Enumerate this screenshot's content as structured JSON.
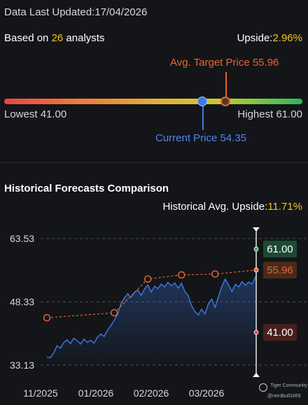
{
  "header": {
    "updated_prefix": "Data Last Updated:",
    "updated_date": "17/04/2026",
    "based_prefix": "Based on ",
    "analyst_count": "26",
    "based_suffix": " analysts",
    "upside_label": "Upside:",
    "upside_value": "2.96%"
  },
  "price_range": {
    "avg_target_label": "Avg. Target Price 55.96",
    "lowest_label": "Lowest 41.00",
    "highest_label": "Highest 61.00",
    "current_label": "Current Price 54.35",
    "low": 41.0,
    "high": 61.0,
    "current": 54.35,
    "avg_target": 55.96,
    "colors": {
      "current": "#3d7ae5",
      "target": "#e8652b",
      "upside": "#f5c518"
    }
  },
  "historical": {
    "title": "Historical Forecasts Comparison",
    "avg_upside_label": "Historical Avg. Upside:",
    "avg_upside_value": "11.71%"
  },
  "chart_data": {
    "type": "line",
    "y_ticks": [
      "63.53",
      "48.33",
      "33.13"
    ],
    "ylim": [
      33.13,
      63.53
    ],
    "x_ticks": [
      "11/2025",
      "01/2026",
      "02/2026",
      "03/2026"
    ],
    "series": [
      {
        "color": "#3d7ae5",
        "points": [
          [
            0.0,
            35.1
          ],
          [
            0.05,
            34.9
          ],
          [
            0.1,
            36.0
          ],
          [
            0.15,
            37.8
          ],
          [
            0.2,
            37.2
          ],
          [
            0.25,
            38.5
          ],
          [
            0.3,
            39.2
          ],
          [
            0.35,
            38.3
          ],
          [
            0.4,
            39.6
          ],
          [
            0.45,
            39.0
          ],
          [
            0.5,
            38.2
          ],
          [
            0.55,
            39.4
          ],
          [
            0.6,
            38.6
          ],
          [
            0.65,
            39.1
          ],
          [
            0.7,
            38.4
          ],
          [
            0.75,
            39.8
          ],
          [
            0.8,
            40.6
          ],
          [
            0.85,
            40.0
          ],
          [
            0.9,
            41.5
          ],
          [
            0.95,
            42.6
          ],
          [
            1.0,
            43.9
          ],
          [
            1.05,
            45.3
          ],
          [
            1.1,
            47.8
          ],
          [
            1.15,
            49.2
          ],
          [
            1.2,
            50.3
          ],
          [
            1.25,
            49.4
          ],
          [
            1.3,
            50.6
          ],
          [
            1.35,
            51.2
          ],
          [
            1.4,
            49.9
          ],
          [
            1.45,
            51.4
          ],
          [
            1.5,
            52.4
          ],
          [
            1.55,
            50.7
          ],
          [
            1.6,
            52.1
          ],
          [
            1.65,
            51.5
          ],
          [
            1.7,
            52.6
          ],
          [
            1.75,
            51.9
          ],
          [
            1.8,
            53.0
          ],
          [
            1.85,
            52.2
          ],
          [
            1.9,
            52.9
          ],
          [
            1.95,
            51.6
          ],
          [
            2.0,
            52.8
          ],
          [
            2.05,
            50.8
          ],
          [
            2.1,
            49.8
          ],
          [
            2.15,
            47.4
          ],
          [
            2.2,
            46.0
          ],
          [
            2.25,
            45.2
          ],
          [
            2.3,
            46.6
          ],
          [
            2.35,
            45.4
          ],
          [
            2.4,
            47.9
          ],
          [
            2.45,
            49.0
          ],
          [
            2.5,
            47.0
          ],
          [
            2.55,
            49.6
          ],
          [
            2.6,
            52.0
          ],
          [
            2.65,
            53.8
          ],
          [
            2.7,
            52.4
          ],
          [
            2.75,
            50.8
          ],
          [
            2.8,
            52.6
          ],
          [
            2.85,
            51.9
          ],
          [
            2.9,
            53.2
          ],
          [
            2.95,
            52.3
          ],
          [
            3.0,
            53.1
          ],
          [
            3.05,
            52.6
          ],
          [
            3.1,
            54.35
          ]
        ]
      },
      {
        "color": "#e8652b",
        "dashed": true,
        "points": [
          [
            0.0,
            44.5
          ],
          [
            1.0,
            45.7
          ],
          [
            1.5,
            53.8
          ],
          [
            2.0,
            54.8
          ],
          [
            2.5,
            55.0
          ],
          [
            3.1,
            55.96
          ]
        ]
      }
    ],
    "tags": [
      {
        "label": "61.00",
        "value": 61.0,
        "bg": "#1d4a33",
        "fg": "#ffffff",
        "dot": "#2fb35a"
      },
      {
        "label": "55.96",
        "value": 55.96,
        "bg": "#4a2a1c",
        "fg": "#e8652b",
        "dot": "#e8652b"
      },
      {
        "label": "41.00",
        "value": 41.0,
        "bg": "#4a1e1e",
        "fg": "#ffffff",
        "dot": "#e84545"
      }
    ]
  },
  "watermark": {
    "line1": "Tiger Community",
    "line2": "@nerdbull1669"
  }
}
